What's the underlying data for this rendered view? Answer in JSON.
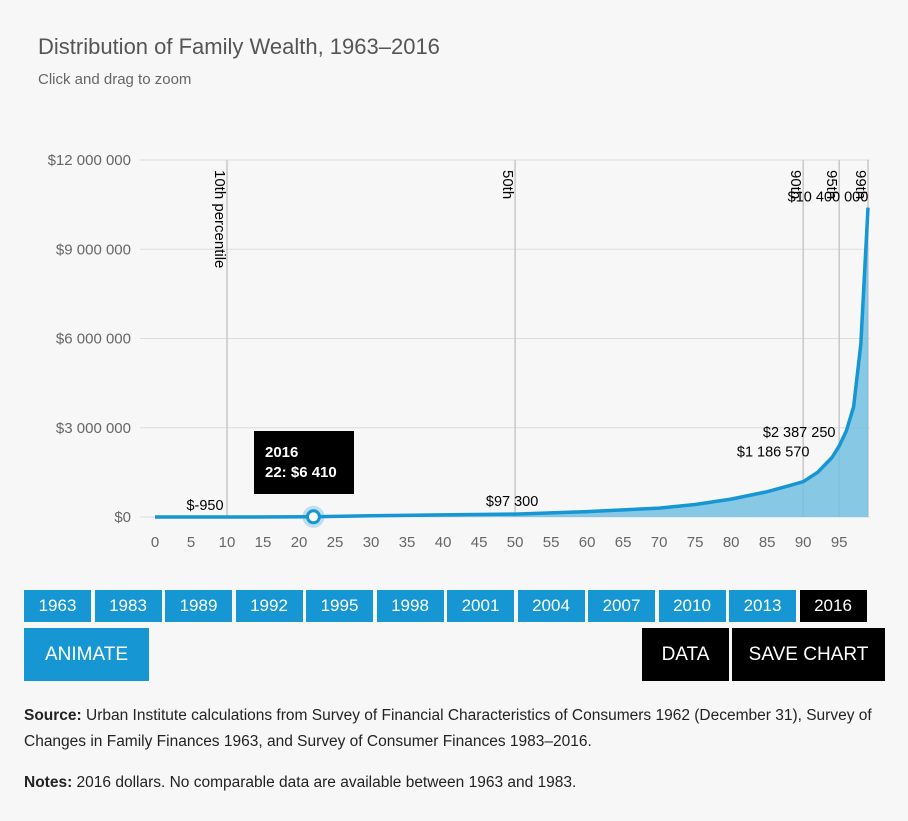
{
  "title": "Distribution of Family Wealth, 1963–2016",
  "subtitle": "Click and drag to zoom",
  "chart_data": {
    "type": "area",
    "title": "Distribution of Family Wealth, 1963–2016",
    "xlabel": "",
    "ylabel": "",
    "xlim": [
      0,
      100
    ],
    "ylim": [
      0,
      12000000
    ],
    "x_ticks": [
      0,
      5,
      10,
      15,
      20,
      25,
      30,
      35,
      40,
      45,
      50,
      55,
      60,
      65,
      70,
      75,
      80,
      85,
      90,
      95
    ],
    "y_ticks": [
      {
        "value": 0,
        "label": "$0"
      },
      {
        "value": 3000000,
        "label": "$3 000 000"
      },
      {
        "value": 6000000,
        "label": "$6 000 000"
      },
      {
        "value": 9000000,
        "label": "$9 000 000"
      },
      {
        "value": 12000000,
        "label": "$12 000 000"
      }
    ],
    "grid": true,
    "series": [
      {
        "name": "2016",
        "x": [
          1,
          10,
          22,
          30,
          40,
          50,
          60,
          70,
          75,
          80,
          85,
          88,
          90,
          92,
          94,
          95,
          96,
          97,
          98,
          99
        ],
        "values": [
          -950,
          -950,
          6410,
          40000,
          70000,
          97300,
          180000,
          300000,
          420000,
          600000,
          850000,
          1050000,
          1186570,
          1500000,
          2000000,
          2387250,
          2900000,
          3700000,
          5800000,
          10400000
        ]
      }
    ],
    "percentile_lines": [
      {
        "x": 10,
        "label": "10th percentile"
      },
      {
        "x": 50,
        "label": "50th"
      },
      {
        "x": 90,
        "label": "90th"
      },
      {
        "x": 95,
        "label": "95th"
      },
      {
        "x": 99,
        "label": "99th"
      }
    ],
    "data_labels": [
      {
        "x": 10,
        "y": -950,
        "label": "$-950"
      },
      {
        "x": 50,
        "y": 97300,
        "label": "$97 300"
      },
      {
        "x": 90,
        "y": 1186570,
        "label": "$1 186 570"
      },
      {
        "x": 95,
        "y": 2387250,
        "label": "$2 387 250"
      },
      {
        "x": 99,
        "y": 10400000,
        "label": "$10 400 000"
      }
    ],
    "highlight": {
      "x": 22,
      "y": 6410
    }
  },
  "tooltip": {
    "line1": "2016",
    "line2": "22: $6 410"
  },
  "years": [
    "1963",
    "1983",
    "1989",
    "1992",
    "1995",
    "1998",
    "2001",
    "2004",
    "2007",
    "2010",
    "2013",
    "2016"
  ],
  "active_year": "2016",
  "buttons": {
    "animate": "ANIMATE",
    "data": "DATA",
    "save": "SAVE CHART"
  },
  "source": {
    "label": "Source:",
    "text": "Urban Institute calculations from Survey of Financial Characteristics of Consumers 1962 (December 31), Survey of Changes in Family Finances 1963, and Survey of Consumer Finances 1983–2016."
  },
  "notes": {
    "label": "Notes:",
    "text": "2016 dollars. No comparable data are available between 1963 and 1983."
  },
  "colors": {
    "line": "#1696d2",
    "area": "#73bfe2",
    "grid": "#dddddd",
    "active": "#000000"
  }
}
